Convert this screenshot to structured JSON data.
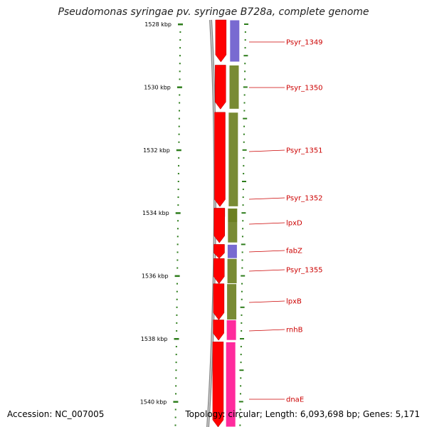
{
  "title": "Pseudomonas syringae pv. syringae B728a, complete genome",
  "footer": {
    "accession": "Accession: NC_007005",
    "summary": "Topology: circular; Length: 6,093,698 bp; Genes: 5,171"
  },
  "colors": {
    "tick": "#2e7d1c",
    "backbone": "#888888",
    "forward_cds": "#ff0000",
    "cog_purple": "#6a5acd",
    "cog_olive": "#6b7f1f",
    "cog_magenta": "#ff1493",
    "label_text": "#cc0000"
  },
  "chart_data": {
    "type": "linear-genome-map",
    "units": "kbp",
    "visible_range_kbp": [
      1527.6,
      1541.2
    ],
    "ticks": [
      {
        "kbp": 1528,
        "label": "1528 kbp"
      },
      {
        "kbp": 1530,
        "label": "1530 kbp"
      },
      {
        "kbp": 1532,
        "label": "1532 kbp"
      },
      {
        "kbp": 1534,
        "label": "1534 kbp"
      },
      {
        "kbp": 1536,
        "label": "1536 kbp"
      },
      {
        "kbp": 1538,
        "label": "1538 kbp"
      },
      {
        "kbp": 1540,
        "label": "1540 kbp"
      }
    ],
    "genes": [
      {
        "name": "Psyr_1349",
        "start_kbp": 1527.6,
        "end_kbp": 1529.2,
        "cog": "purple"
      },
      {
        "name": "Psyr_1350",
        "start_kbp": 1529.3,
        "end_kbp": 1530.7,
        "cog": "olive"
      },
      {
        "name": "Psyr_1351",
        "start_kbp": 1530.8,
        "end_kbp": 1533.8,
        "cog": "olive"
      },
      {
        "name": "Psyr_1352",
        "start_kbp": 1533.85,
        "end_kbp": 1534.3,
        "cog": "olive"
      },
      {
        "name": "lpxD",
        "start_kbp": 1533.85,
        "end_kbp": 1534.95,
        "cog": "olive"
      },
      {
        "name": "fabZ",
        "start_kbp": 1535.0,
        "end_kbp": 1535.45,
        "cog": "purple"
      },
      {
        "name": "Psyr_1355",
        "start_kbp": 1535.45,
        "end_kbp": 1536.25,
        "cog": "olive"
      },
      {
        "name": "lpxB",
        "start_kbp": 1536.25,
        "end_kbp": 1537.4,
        "cog": "olive"
      },
      {
        "name": "rnhB",
        "start_kbp": 1537.4,
        "end_kbp": 1538.05,
        "cog": "magenta"
      },
      {
        "name": "dnaE",
        "start_kbp": 1538.1,
        "end_kbp": 1541.2,
        "cog": "magenta"
      }
    ]
  }
}
